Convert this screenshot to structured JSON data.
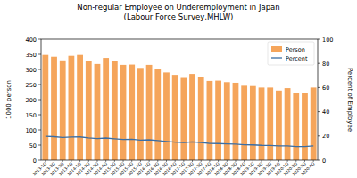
{
  "chart_data": {
    "type": "bar",
    "title": "Non-regular Employee on Underemployment in Japan",
    "subtitle": "(Labour Force Survey,MHLW)",
    "y_label": "1000 person",
    "y2_label": "Percent of Employee",
    "categories": [
      "2013-1Q",
      "2013-2Q",
      "2013-3Q",
      "2013-4Q",
      "2014-1Q",
      "2014-2Q",
      "2014-3Q",
      "2014-4Q",
      "2015-1Q",
      "2015-2Q",
      "2015-3Q",
      "2015-4Q",
      "2016-1Q",
      "2016-2Q",
      "2016-3Q",
      "2016-4Q",
      "2017-1Q",
      "2017-2Q",
      "2017-3Q",
      "2017-4Q",
      "2018-1Q",
      "2018-2Q",
      "2018-3Q",
      "2018-4Q",
      "2019-1Q",
      "2019-2Q",
      "2019-3Q",
      "2019-4Q",
      "2020-1Q",
      "2020-2Q",
      "2020-3Q",
      "2020-4Q"
    ],
    "series": [
      {
        "name": "Person",
        "type": "bar",
        "color": "#f5a55b",
        "values": [
          348,
          342,
          330,
          345,
          348,
          328,
          318,
          338,
          328,
          315,
          316,
          305,
          315,
          300,
          290,
          282,
          272,
          285,
          276,
          262,
          263,
          258,
          256,
          246,
          245,
          240,
          240,
          230,
          238,
          222,
          222,
          240
        ]
      },
      {
        "name": "Percent",
        "type": "line",
        "color": "#3a6ea5",
        "axis": "y2",
        "values": [
          19.8,
          19.5,
          18.8,
          19.2,
          19.3,
          18.5,
          17.9,
          18.4,
          17.8,
          17.2,
          17.3,
          16.6,
          16.9,
          16.2,
          15.6,
          15.0,
          14.7,
          15.2,
          14.7,
          13.9,
          13.8,
          13.5,
          13.3,
          12.8,
          12.7,
          12.3,
          12.2,
          11.8,
          11.9,
          11.3,
          11.3,
          11.9
        ]
      }
    ],
    "ylim": [
      0,
      400
    ],
    "yticks": [
      0,
      50,
      100,
      150,
      200,
      250,
      300,
      350,
      400
    ],
    "y2lim": [
      0,
      100
    ],
    "y2ticks": [
      0,
      20,
      40,
      60,
      80,
      100
    ],
    "grid": false,
    "legend": "upper right"
  }
}
